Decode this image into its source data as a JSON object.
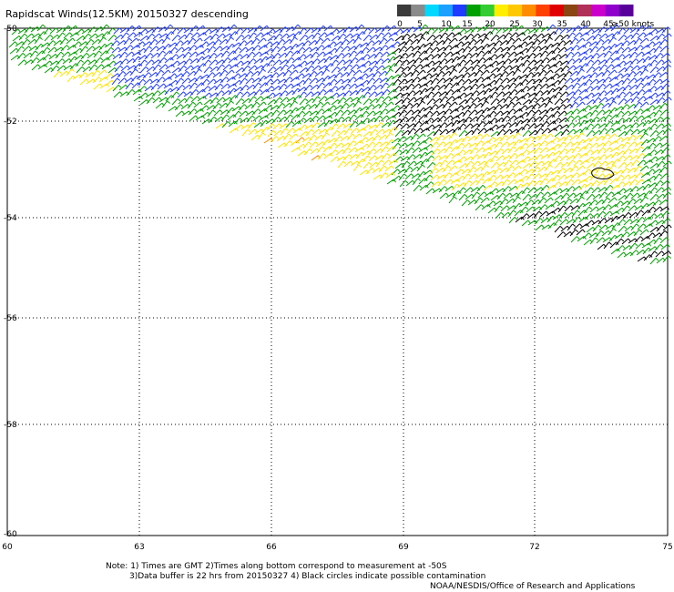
{
  "title": "Rapidscat Winds(12.5KM) 20150327 descending",
  "legend": {
    "labels": [
      "0",
      "5",
      "10",
      "15",
      "20",
      "25",
      "30",
      "35",
      "40",
      "45",
      "≥50 knots"
    ],
    "colors": [
      "#3a3a3a",
      "#8a8a8a",
      "#00d8ff",
      "#1aa0ff",
      "#1f3bff",
      "#00a000",
      "#33cc33",
      "#ffee00",
      "#ffc800",
      "#ff8c00",
      "#ff4000",
      "#e00000",
      "#8b4513",
      "#b0305a",
      "#cc00cc",
      "#9000cc",
      "#5a009a"
    ]
  },
  "axes": {
    "x_ticks": [
      "60",
      "63",
      "66",
      "69",
      "72",
      "75"
    ],
    "y_ticks": [
      "-50",
      "-52",
      "-54",
      "-56",
      "-58",
      "-60"
    ],
    "lon_range": [
      60,
      75
    ],
    "lat_range": [
      -60,
      -50
    ]
  },
  "notes": {
    "line1": "Note: 1) Times are GMT 2)Times along bottom correspond to measurement at -50S",
    "line2": "3)Data buffer is 22 hrs from 20150327 4) Black circles indicate possible contamination",
    "line3": "NOAA/NESDIS/Office of Research and Applications"
  },
  "wind_colors": {
    "black": "#000000",
    "blue": "#1f3bff",
    "light_blue": "#1aa0ff",
    "green": "#00a000",
    "yellow": "#ffe400",
    "orange": "#ff8c00",
    "red": "#e03000"
  }
}
